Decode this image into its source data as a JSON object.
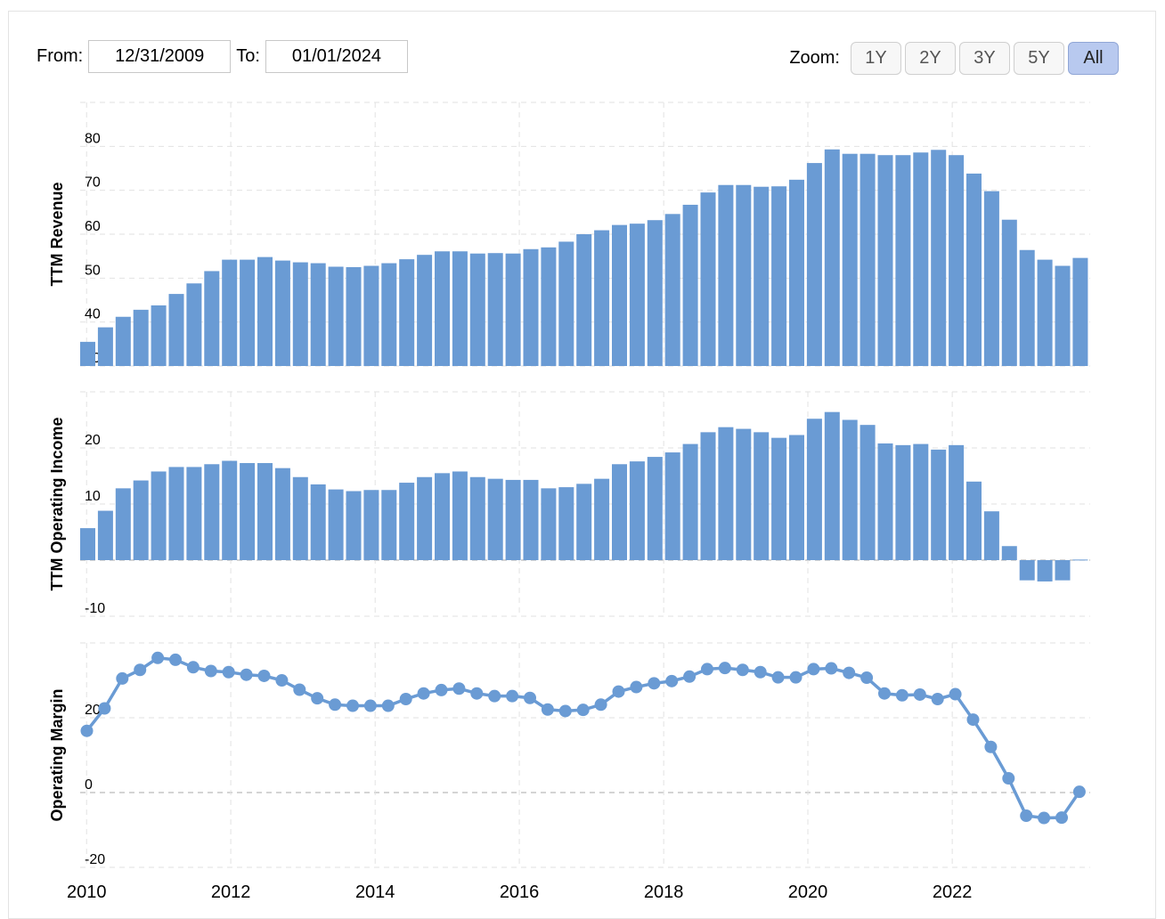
{
  "range": {
    "from_label": "From:",
    "from_value": "12/31/2009",
    "to_label": "To:",
    "to_value": "01/01/2024"
  },
  "zoom": {
    "label": "Zoom:",
    "buttons": [
      "1Y",
      "2Y",
      "3Y",
      "5Y",
      "All"
    ],
    "active": "All"
  },
  "chart_data": [
    {
      "type": "bar",
      "ylabel": "TTM Revenue",
      "ylim": [
        30,
        90
      ],
      "yticks": [
        30,
        40,
        50,
        60,
        70,
        80
      ],
      "x_ticks": [
        "2010",
        "2012",
        "2014",
        "2016",
        "2018",
        "2020",
        "2022"
      ],
      "x_start": "2009-12-31",
      "x_end": "2024-01-01",
      "color": "#6a9bd4",
      "values": [
        35.5,
        38.8,
        41.2,
        42.8,
        43.8,
        46.4,
        48.8,
        51.6,
        54.2,
        54.2,
        54.8,
        54.0,
        53.6,
        53.4,
        52.6,
        52.5,
        52.8,
        53.4,
        54.3,
        55.3,
        56.1,
        56.1,
        55.6,
        55.7,
        55.6,
        56.6,
        57.0,
        58.3,
        60.0,
        60.9,
        62.1,
        62.4,
        63.2,
        64.6,
        66.7,
        69.5,
        71.2,
        71.2,
        70.8,
        70.9,
        72.4,
        76.2,
        79.3,
        78.3,
        78.3,
        78.0,
        78.0,
        78.6,
        79.2,
        78.0,
        73.8,
        69.8,
        63.3,
        56.4,
        54.2,
        52.8,
        54.6
      ]
    },
    {
      "type": "bar",
      "ylabel": "TTM Operating Income",
      "ylim": [
        -10,
        30
      ],
      "yticks": [
        -10,
        0,
        10,
        20
      ],
      "color": "#6a9bd4",
      "values": [
        5.7,
        8.8,
        12.8,
        14.2,
        15.8,
        16.6,
        16.6,
        17.1,
        17.7,
        17.3,
        17.3,
        16.4,
        14.8,
        13.5,
        12.6,
        12.3,
        12.5,
        12.5,
        13.8,
        14.8,
        15.5,
        15.8,
        14.8,
        14.5,
        14.3,
        14.3,
        12.8,
        13.0,
        13.6,
        14.5,
        17.1,
        17.6,
        18.4,
        19.2,
        20.7,
        22.8,
        23.7,
        23.4,
        22.8,
        21.8,
        22.3,
        25.2,
        26.4,
        25.0,
        24.1,
        20.8,
        20.5,
        20.7,
        19.7,
        20.5,
        14.0,
        8.7,
        2.5,
        -3.6,
        -3.8,
        -3.6,
        0.1
      ]
    },
    {
      "type": "line",
      "ylabel": "Operating Margin",
      "ylim": [
        -20,
        40
      ],
      "yticks": [
        -20,
        0,
        20
      ],
      "color": "#6a9bd4",
      "values": [
        16.5,
        22.5,
        30.5,
        32.8,
        36.0,
        35.5,
        33.5,
        32.5,
        32.2,
        31.5,
        31.2,
        30.0,
        27.5,
        25.2,
        23.5,
        23.2,
        23.2,
        23.2,
        25.0,
        26.5,
        27.4,
        27.8,
        26.5,
        25.8,
        25.8,
        25.3,
        22.2,
        21.8,
        22.1,
        23.5,
        27.0,
        28.2,
        29.2,
        29.8,
        31.0,
        33.0,
        33.3,
        32.8,
        32.2,
        30.8,
        30.8,
        33.0,
        33.2,
        32.0,
        30.7,
        26.5,
        26.0,
        26.2,
        25.0,
        26.3,
        19.5,
        12.2,
        3.8,
        -6.2,
        -6.8,
        -6.7,
        0.2
      ]
    }
  ]
}
